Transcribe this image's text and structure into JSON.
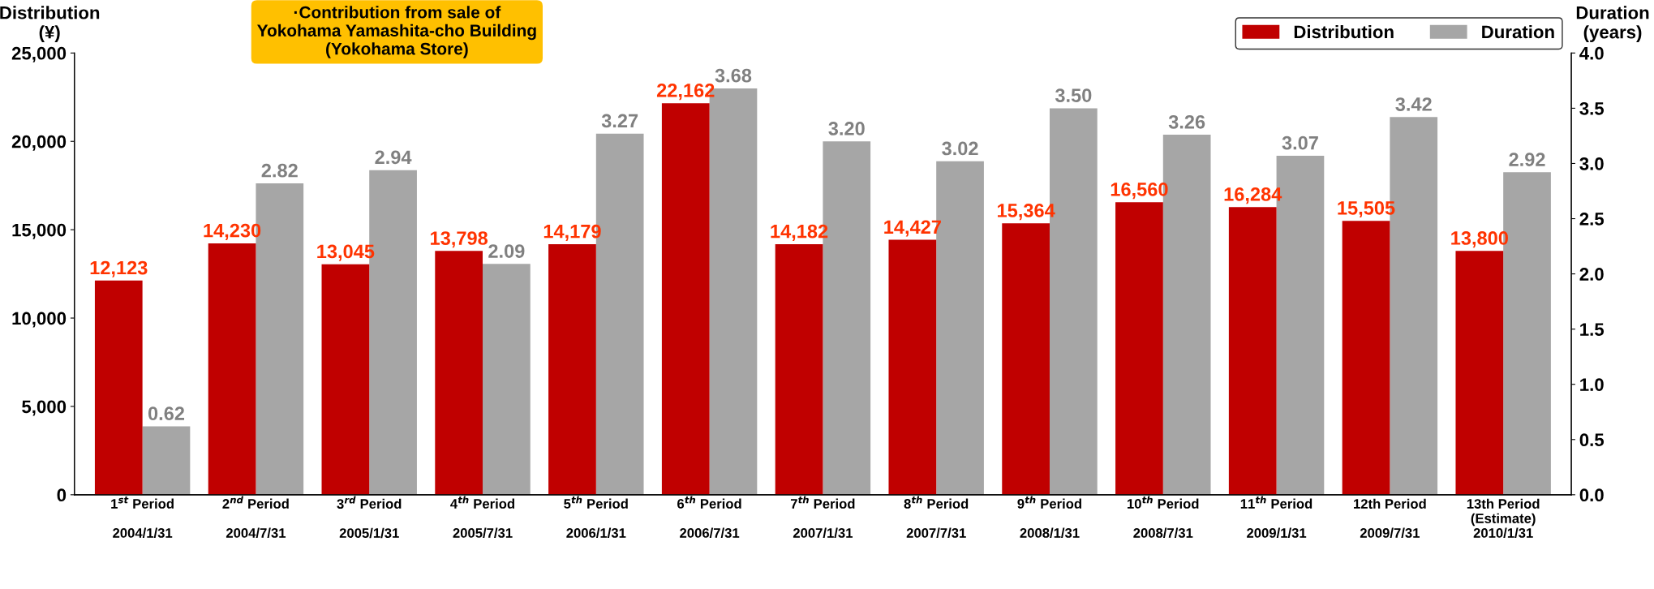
{
  "chart_data": {
    "type": "bar",
    "categories": [
      "1$^{st}$ Period\n\n2004/1/31",
      "2$^{nd}$ Period\n\n2004/7/31",
      "3$^{rd}$ Period\n\n2005/1/31",
      "4$^{th}$ Period\n\n2005/7/31",
      "5$^{th}$ Period\n\n2006/1/31",
      "6$^{th}$ Period\n\n2006/7/31",
      "7$^{th}$ Period\n\n2007/1/31",
      "8$^{th}$ Period\n\n2007/7/31",
      "9$^{th}$ Period\n\n2008/1/31",
      "10$^{th}$ Period\n\n2008/7/31",
      "11$^{th}$ Period\n\n2009/1/31",
      "12th Period\n\n2009/7/31",
      "13th Period\n(Estimate)\n2010/1/31"
    ],
    "series": [
      {
        "name": "Distribution",
        "color": "#c00000",
        "values": [
          12123,
          14230,
          13045,
          13798,
          14179,
          22162,
          14182,
          14427,
          15364,
          16560,
          16284,
          15505,
          13800
        ],
        "value_labels": [
          "12,123",
          "14,230",
          "13,045",
          "13,798",
          "14,179",
          "22,162",
          "14,182",
          "14,427",
          "15,364",
          "16,560",
          "16,284",
          "15,505",
          "13,800"
        ]
      },
      {
        "name": "Duration",
        "color": "#a6a6a6",
        "axis": "y2",
        "values": [
          0.62,
          2.82,
          2.94,
          2.09,
          3.27,
          3.68,
          3.2,
          3.02,
          3.5,
          3.26,
          3.07,
          3.42,
          2.92
        ],
        "value_labels": [
          "0.62",
          "2.82",
          "2.94",
          "2.09",
          "3.27",
          "3.68",
          "3.20",
          "3.02",
          "3.50",
          "3.26",
          "3.07",
          "3.42",
          "2.92"
        ]
      }
    ],
    "ylabel": "Distribution\n(¥)",
    "y2label": "Duration\n(years)",
    "ylim": [
      0,
      25000
    ],
    "yticks": [
      {
        "value": 0,
        "label": "0"
      },
      {
        "value": 5000,
        "label": "5,000"
      },
      {
        "value": 10000,
        "label": "10,000"
      },
      {
        "value": 15000,
        "label": "15,000"
      },
      {
        "value": 20000,
        "label": "20,000"
      },
      {
        "value": 25000,
        "label": "25,000"
      }
    ],
    "y2lim": [
      0,
      4
    ],
    "y2ticks": [
      {
        "value": 0,
        "label": "0.0"
      },
      {
        "value": 0.5,
        "label": "0.5"
      },
      {
        "value": 1,
        "label": "1.0"
      },
      {
        "value": 1.5,
        "label": "1.5"
      },
      {
        "value": 2,
        "label": "2.0"
      },
      {
        "value": 2.5,
        "label": "2.5"
      },
      {
        "value": 3,
        "label": "3.0"
      },
      {
        "value": 3.5,
        "label": "3.5"
      },
      {
        "value": 4,
        "label": "4.0"
      }
    ],
    "annotations": [
      "·Contribution from sale of\nYokohama Yamashita-cho Building\n(Yokohama Store)"
    ],
    "legend": "top right",
    "grid": false
  }
}
